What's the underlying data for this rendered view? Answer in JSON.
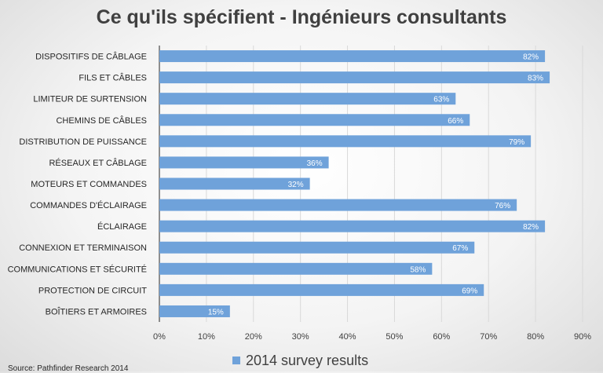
{
  "chart_data": {
    "type": "bar",
    "orientation": "horizontal",
    "title": "Ce qu'ils spécifient - Ingénieurs consultants",
    "categories": [
      "DISPOSITIFS DE CÂBLAGE",
      "FILS ET CÂBLES",
      "LIMITEUR DE SURTENSION",
      "CHEMINS DE CÂBLES",
      "DISTRIBUTION DE PUISSANCE",
      "RÉSEAUX ET CÂBLAGE",
      "MOTEURS ET COMMANDES",
      "COMMANDES D'ÉCLAIRAGE",
      "ÉCLAIRAGE",
      "CONNEXION ET TERMINAISON",
      "COMMUNICATIONS ET SÉCURITÉ",
      "PROTECTION DE CIRCUIT",
      "BOÎTIERS ET ARMOIRES"
    ],
    "series": [
      {
        "name": "2014 survey results",
        "values": [
          82,
          83,
          63,
          66,
          79,
          36,
          32,
          76,
          82,
          67,
          58,
          69,
          15
        ],
        "labels": [
          "82%",
          "83%",
          "63%",
          "66%",
          "79%",
          "36%",
          "32%",
          "76%",
          "82%",
          "67%",
          "58%",
          "69%",
          "15%"
        ]
      }
    ],
    "xlim": [
      0,
      90
    ],
    "xticks": [
      0,
      10,
      20,
      30,
      40,
      50,
      60,
      70,
      80,
      90
    ],
    "xtick_labels": [
      "0%",
      "10%",
      "20%",
      "30%",
      "40%",
      "50%",
      "60%",
      "70%",
      "80%",
      "90%"
    ],
    "grid": true,
    "legend_position": "bottom",
    "bar_color": "#6fa2da",
    "grid_color": "#d9d9d9"
  },
  "source": "Source: Pathfinder Research 2014"
}
